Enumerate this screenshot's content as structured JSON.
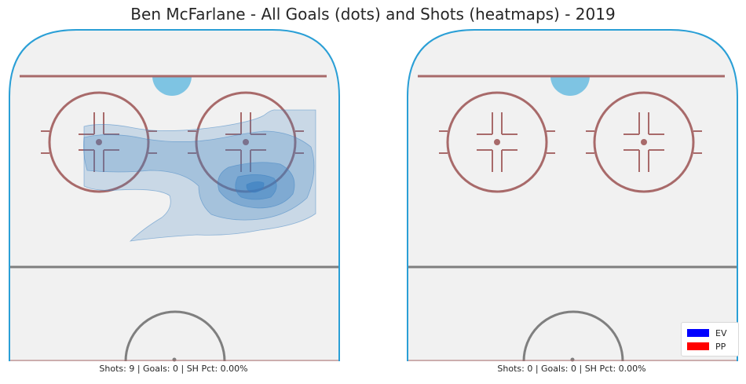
{
  "title": "Ben McFarlane - All Goals (dots) and Shots (heatmaps) - 2019",
  "colors": {
    "ice": "#f1f1f1",
    "boards": "#2a9fd6",
    "red_line": "#a86a6a",
    "crease": "#7ec4e3",
    "center_line": "#7f7f7f",
    "heat": "#3a7fc1"
  },
  "panels": [
    {
      "caption": "Shots: 9 | Goals: 0 | SH Pct: 0.00%"
    },
    {
      "caption": "Shots: 0 | Goals: 0 | SH Pct: 0.00%"
    }
  ],
  "legend": [
    {
      "label": "EV",
      "color": "#0000ff"
    },
    {
      "label": "PP",
      "color": "#ff0000"
    }
  ],
  "chart_data": [
    {
      "type": "heatmap",
      "title": "Ben McFarlane - All Goals (dots) and Shots (heatmaps) - 2019",
      "caption": "Shots: 9 | Goals: 0 | SH Pct: 0.00%",
      "shots": 9,
      "goals": 0,
      "sh_pct": "0.00%",
      "goal_points": [],
      "density_levels": 5
    },
    {
      "type": "heatmap",
      "caption": "Shots: 0 | Goals: 0 | SH Pct: 0.00%",
      "shots": 0,
      "goals": 0,
      "sh_pct": "0.00%",
      "goal_points": [],
      "legend": [
        "EV",
        "PP"
      ]
    }
  ]
}
